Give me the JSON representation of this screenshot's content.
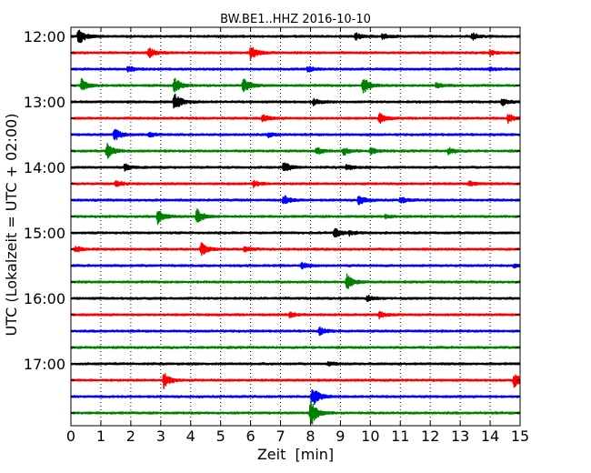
{
  "chart_data": {
    "type": "line",
    "title": "BW.BE1..HHZ 2016-10-10",
    "xlabel": "Zeit  [min]",
    "ylabel": "UTC (Lokalzeit = UTC + 02:00)",
    "xlim": [
      0,
      15
    ],
    "x_ticks": [
      "0",
      "1",
      "2",
      "3",
      "4",
      "5",
      "6",
      "7",
      "8",
      "9",
      "10",
      "11",
      "12",
      "13",
      "14",
      "15"
    ],
    "y_tick_labels": [
      "12:00",
      "13:00",
      "14:00",
      "15:00",
      "16:00",
      "17:00"
    ],
    "grid": true,
    "trace_colors": [
      "#000000",
      "#ff0000",
      "#0000ff",
      "#008000"
    ],
    "traces": [
      {
        "start": "12:00",
        "events": [
          [
            0.25,
            1.0
          ],
          [
            9.5,
            0.4
          ],
          [
            10.4,
            0.3
          ],
          [
            13.4,
            0.35
          ]
        ]
      },
      {
        "start": "12:15",
        "events": [
          [
            2.6,
            0.55
          ],
          [
            6.0,
            0.75
          ],
          [
            14.0,
            0.25
          ]
        ]
      },
      {
        "start": "12:30",
        "events": [
          [
            1.9,
            0.35
          ],
          [
            7.9,
            0.3
          ],
          [
            14.0,
            0.2
          ]
        ]
      },
      {
        "start": "12:45",
        "events": [
          [
            0.35,
            0.7
          ],
          [
            3.45,
            0.85
          ],
          [
            5.75,
            0.8
          ],
          [
            9.75,
            1.0
          ],
          [
            12.2,
            0.3
          ]
        ]
      },
      {
        "start": "13:00",
        "events": [
          [
            3.45,
            1.0
          ],
          [
            8.1,
            0.35
          ],
          [
            14.4,
            0.35
          ]
        ]
      },
      {
        "start": "13:15",
        "events": [
          [
            6.4,
            0.4
          ],
          [
            10.3,
            0.55
          ],
          [
            14.6,
            0.45
          ]
        ]
      },
      {
        "start": "13:30",
        "events": [
          [
            1.45,
            0.7
          ],
          [
            2.6,
            0.25
          ],
          [
            6.6,
            0.25
          ]
        ]
      },
      {
        "start": "13:45",
        "events": [
          [
            1.2,
            0.9
          ],
          [
            8.2,
            0.4
          ],
          [
            9.1,
            0.4
          ],
          [
            10.0,
            0.35
          ],
          [
            12.6,
            0.35
          ]
        ]
      },
      {
        "start": "14:00",
        "events": [
          [
            1.8,
            0.4
          ],
          [
            7.1,
            0.6
          ],
          [
            9.2,
            0.3
          ]
        ]
      },
      {
        "start": "14:15",
        "events": [
          [
            1.5,
            0.3
          ],
          [
            6.1,
            0.35
          ],
          [
            13.3,
            0.25
          ]
        ]
      },
      {
        "start": "14:30",
        "events": [
          [
            7.1,
            0.55
          ],
          [
            9.6,
            0.55
          ],
          [
            11.0,
            0.35
          ]
        ]
      },
      {
        "start": "14:45",
        "events": [
          [
            2.9,
            0.8
          ],
          [
            4.2,
            0.85
          ],
          [
            10.5,
            0.2
          ]
        ]
      },
      {
        "start": "15:00",
        "events": [
          [
            8.8,
            0.55
          ],
          [
            9.3,
            0.2
          ]
        ]
      },
      {
        "start": "15:15",
        "events": [
          [
            0.15,
            0.3
          ],
          [
            4.35,
            0.7
          ],
          [
            5.8,
            0.3
          ]
        ]
      },
      {
        "start": "15:30",
        "events": [
          [
            7.7,
            0.35
          ],
          [
            14.8,
            0.2
          ]
        ]
      },
      {
        "start": "15:45",
        "events": [
          [
            9.2,
            0.9
          ]
        ]
      },
      {
        "start": "16:00",
        "events": [
          [
            9.9,
            0.3
          ]
        ]
      },
      {
        "start": "16:15",
        "events": [
          [
            7.3,
            0.3
          ],
          [
            10.3,
            0.35
          ]
        ]
      },
      {
        "start": "16:30",
        "events": [
          [
            8.3,
            0.4
          ]
        ]
      },
      {
        "start": "16:45",
        "events": []
      },
      {
        "start": "17:00",
        "events": [
          [
            8.6,
            0.2
          ]
        ]
      },
      {
        "start": "17:15",
        "events": [
          [
            3.1,
            0.9
          ],
          [
            14.8,
            0.75
          ]
        ]
      },
      {
        "start": "17:30",
        "events": [
          [
            8.05,
            1.2
          ]
        ]
      },
      {
        "start": "17:45",
        "events": [
          [
            8.0,
            1.6
          ]
        ]
      }
    ]
  }
}
